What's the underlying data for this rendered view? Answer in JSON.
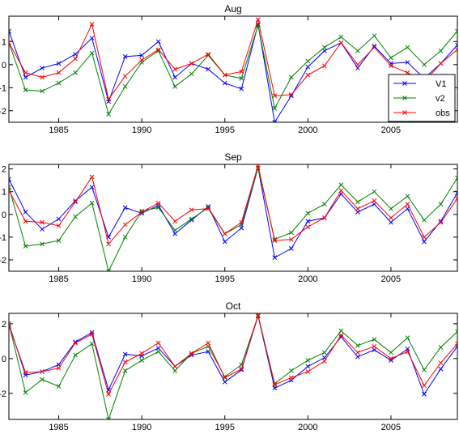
{
  "chart_data": [
    {
      "type": "line",
      "title": "Aug",
      "xlabel": "",
      "ylabel": "",
      "xlim": [
        1982,
        2009
      ],
      "ylim": [
        -2.5,
        2.1
      ],
      "xticks": [
        1985,
        1990,
        1995,
        2000,
        2005
      ],
      "yticks": [
        -2,
        -1,
        0,
        1
      ],
      "legend": {
        "show": true,
        "placement": "right"
      },
      "x": [
        1982,
        1983,
        1984,
        1985,
        1986,
        1987,
        1988,
        1989,
        1990,
        1991,
        1992,
        1993,
        1994,
        1995,
        1996,
        1997,
        1998,
        1999,
        2000,
        2001,
        2002,
        2003,
        2004,
        2005,
        2006,
        2007,
        2008,
        2009
      ],
      "series": [
        {
          "name": "V1",
          "color": "#0000ff",
          "values": [
            1.45,
            -0.55,
            -0.15,
            0.05,
            0.45,
            1.15,
            -1.6,
            0.35,
            0.4,
            1.0,
            -0.55,
            0.05,
            -0.2,
            -0.8,
            -1.05,
            1.75,
            -2.5,
            -1.35,
            -0.1,
            0.6,
            0.95,
            -0.15,
            0.8,
            0.05,
            0.1,
            -0.6,
            0.05,
            0.85
          ]
        },
        {
          "name": "v2",
          "color": "#008000",
          "values": [
            0.95,
            -1.1,
            -1.15,
            -0.8,
            -0.35,
            0.5,
            -2.15,
            -0.95,
            0.1,
            0.6,
            -0.95,
            -0.4,
            0.4,
            -0.45,
            -0.6,
            1.7,
            -1.9,
            -0.55,
            0.15,
            0.75,
            1.2,
            0.6,
            1.25,
            0.3,
            0.75,
            0.0,
            0.6,
            1.45
          ]
        },
        {
          "name": "obs",
          "color": "#ff0000",
          "values": [
            0.95,
            -0.35,
            -0.55,
            -0.35,
            0.25,
            1.75,
            -1.5,
            -0.5,
            0.2,
            0.65,
            -0.2,
            0.05,
            0.45,
            -0.45,
            -0.3,
            1.95,
            -1.35,
            -1.3,
            -0.45,
            -0.05,
            0.95,
            0.0,
            0.75,
            -0.05,
            -0.35,
            -0.75,
            0.05,
            0.65
          ]
        }
      ]
    },
    {
      "type": "line",
      "title": "Sep",
      "xlabel": "",
      "ylabel": "",
      "xlim": [
        1982,
        2009
      ],
      "ylim": [
        -2.5,
        2.2
      ],
      "xticks": [
        1985,
        1990,
        1995,
        2000,
        2005
      ],
      "yticks": [
        -2,
        -1,
        0,
        1,
        2
      ],
      "legend": {
        "show": false
      },
      "x": [
        1982,
        1983,
        1984,
        1985,
        1986,
        1987,
        1988,
        1989,
        1990,
        1991,
        1992,
        1993,
        1994,
        1995,
        1996,
        1997,
        1998,
        1999,
        2000,
        2001,
        2002,
        2003,
        2004,
        2005,
        2006,
        2007,
        2008,
        2009
      ],
      "series": [
        {
          "name": "V1",
          "color": "#0000ff",
          "values": [
            1.55,
            0.1,
            -0.65,
            -0.2,
            0.6,
            1.2,
            -1.0,
            0.3,
            0.05,
            0.4,
            -0.85,
            -0.25,
            0.35,
            -1.2,
            -0.6,
            2.05,
            -1.9,
            -1.5,
            -0.3,
            -0.15,
            0.9,
            0.1,
            0.45,
            -0.35,
            0.25,
            -1.2,
            -0.3,
            0.95
          ]
        },
        {
          "name": "v2",
          "color": "#008000",
          "values": [
            1.2,
            -1.4,
            -1.3,
            -1.15,
            -0.1,
            0.5,
            -2.5,
            -1.0,
            0.15,
            0.3,
            -0.7,
            -0.2,
            0.3,
            -0.85,
            -0.45,
            2.05,
            -1.1,
            -0.8,
            0.05,
            0.45,
            1.3,
            0.55,
            1.0,
            0.25,
            0.8,
            -0.25,
            0.45,
            1.6
          ]
        },
        {
          "name": "obs",
          "color": "#ff0000",
          "values": [
            1.05,
            -0.3,
            -0.35,
            -0.5,
            0.55,
            1.65,
            -1.3,
            -0.45,
            0.1,
            0.5,
            -0.3,
            0.2,
            0.25,
            -0.85,
            -0.35,
            2.15,
            -1.15,
            -1.1,
            -0.55,
            -0.15,
            1.05,
            0.25,
            0.6,
            -0.15,
            0.45,
            -1.0,
            -0.35,
            0.7
          ]
        }
      ]
    },
    {
      "type": "line",
      "title": "Oct",
      "xlabel": "",
      "ylabel": "",
      "xlim": [
        1982,
        2009
      ],
      "ylim": [
        -3.5,
        2.6
      ],
      "xticks": [
        1985,
        1990,
        1995,
        2000,
        2005
      ],
      "yticks": [
        -2,
        0,
        2
      ],
      "legend": {
        "show": false
      },
      "x": [
        1982,
        1983,
        1984,
        1985,
        1986,
        1987,
        1988,
        1989,
        1990,
        1991,
        1992,
        1993,
        1994,
        1995,
        1996,
        1997,
        1998,
        1999,
        2000,
        2001,
        2002,
        2003,
        2004,
        2005,
        2006,
        2007,
        2008,
        2009
      ],
      "series": [
        {
          "name": "V1",
          "color": "#0000ff",
          "values": [
            2.0,
            -0.95,
            -0.75,
            -0.35,
            0.95,
            1.5,
            -1.8,
            0.25,
            0.15,
            0.6,
            -0.45,
            0.2,
            0.4,
            -1.35,
            -0.65,
            2.45,
            -1.7,
            -1.25,
            -0.45,
            0.05,
            1.25,
            0.1,
            0.5,
            -0.1,
            0.55,
            -2.05,
            -0.6,
            0.7
          ]
        },
        {
          "name": "v2",
          "color": "#008000",
          "values": [
            2.0,
            -1.95,
            -1.2,
            -1.6,
            0.2,
            0.85,
            -3.5,
            -0.7,
            -0.1,
            0.4,
            -0.7,
            0.3,
            0.7,
            -1.05,
            -0.35,
            2.45,
            -1.45,
            -0.7,
            -0.1,
            0.35,
            1.6,
            0.75,
            1.1,
            0.35,
            1.2,
            -0.65,
            0.65,
            1.55
          ]
        },
        {
          "name": "obs",
          "color": "#ff0000",
          "values": [
            1.9,
            -0.8,
            -0.75,
            -0.55,
            0.9,
            1.4,
            -2.05,
            -0.2,
            0.3,
            0.9,
            -0.45,
            0.3,
            0.9,
            -1.1,
            -0.6,
            2.5,
            -1.5,
            -1.1,
            -0.75,
            -0.15,
            1.35,
            0.35,
            0.7,
            0.0,
            0.4,
            -1.55,
            -0.25,
            0.85
          ]
        }
      ]
    }
  ]
}
